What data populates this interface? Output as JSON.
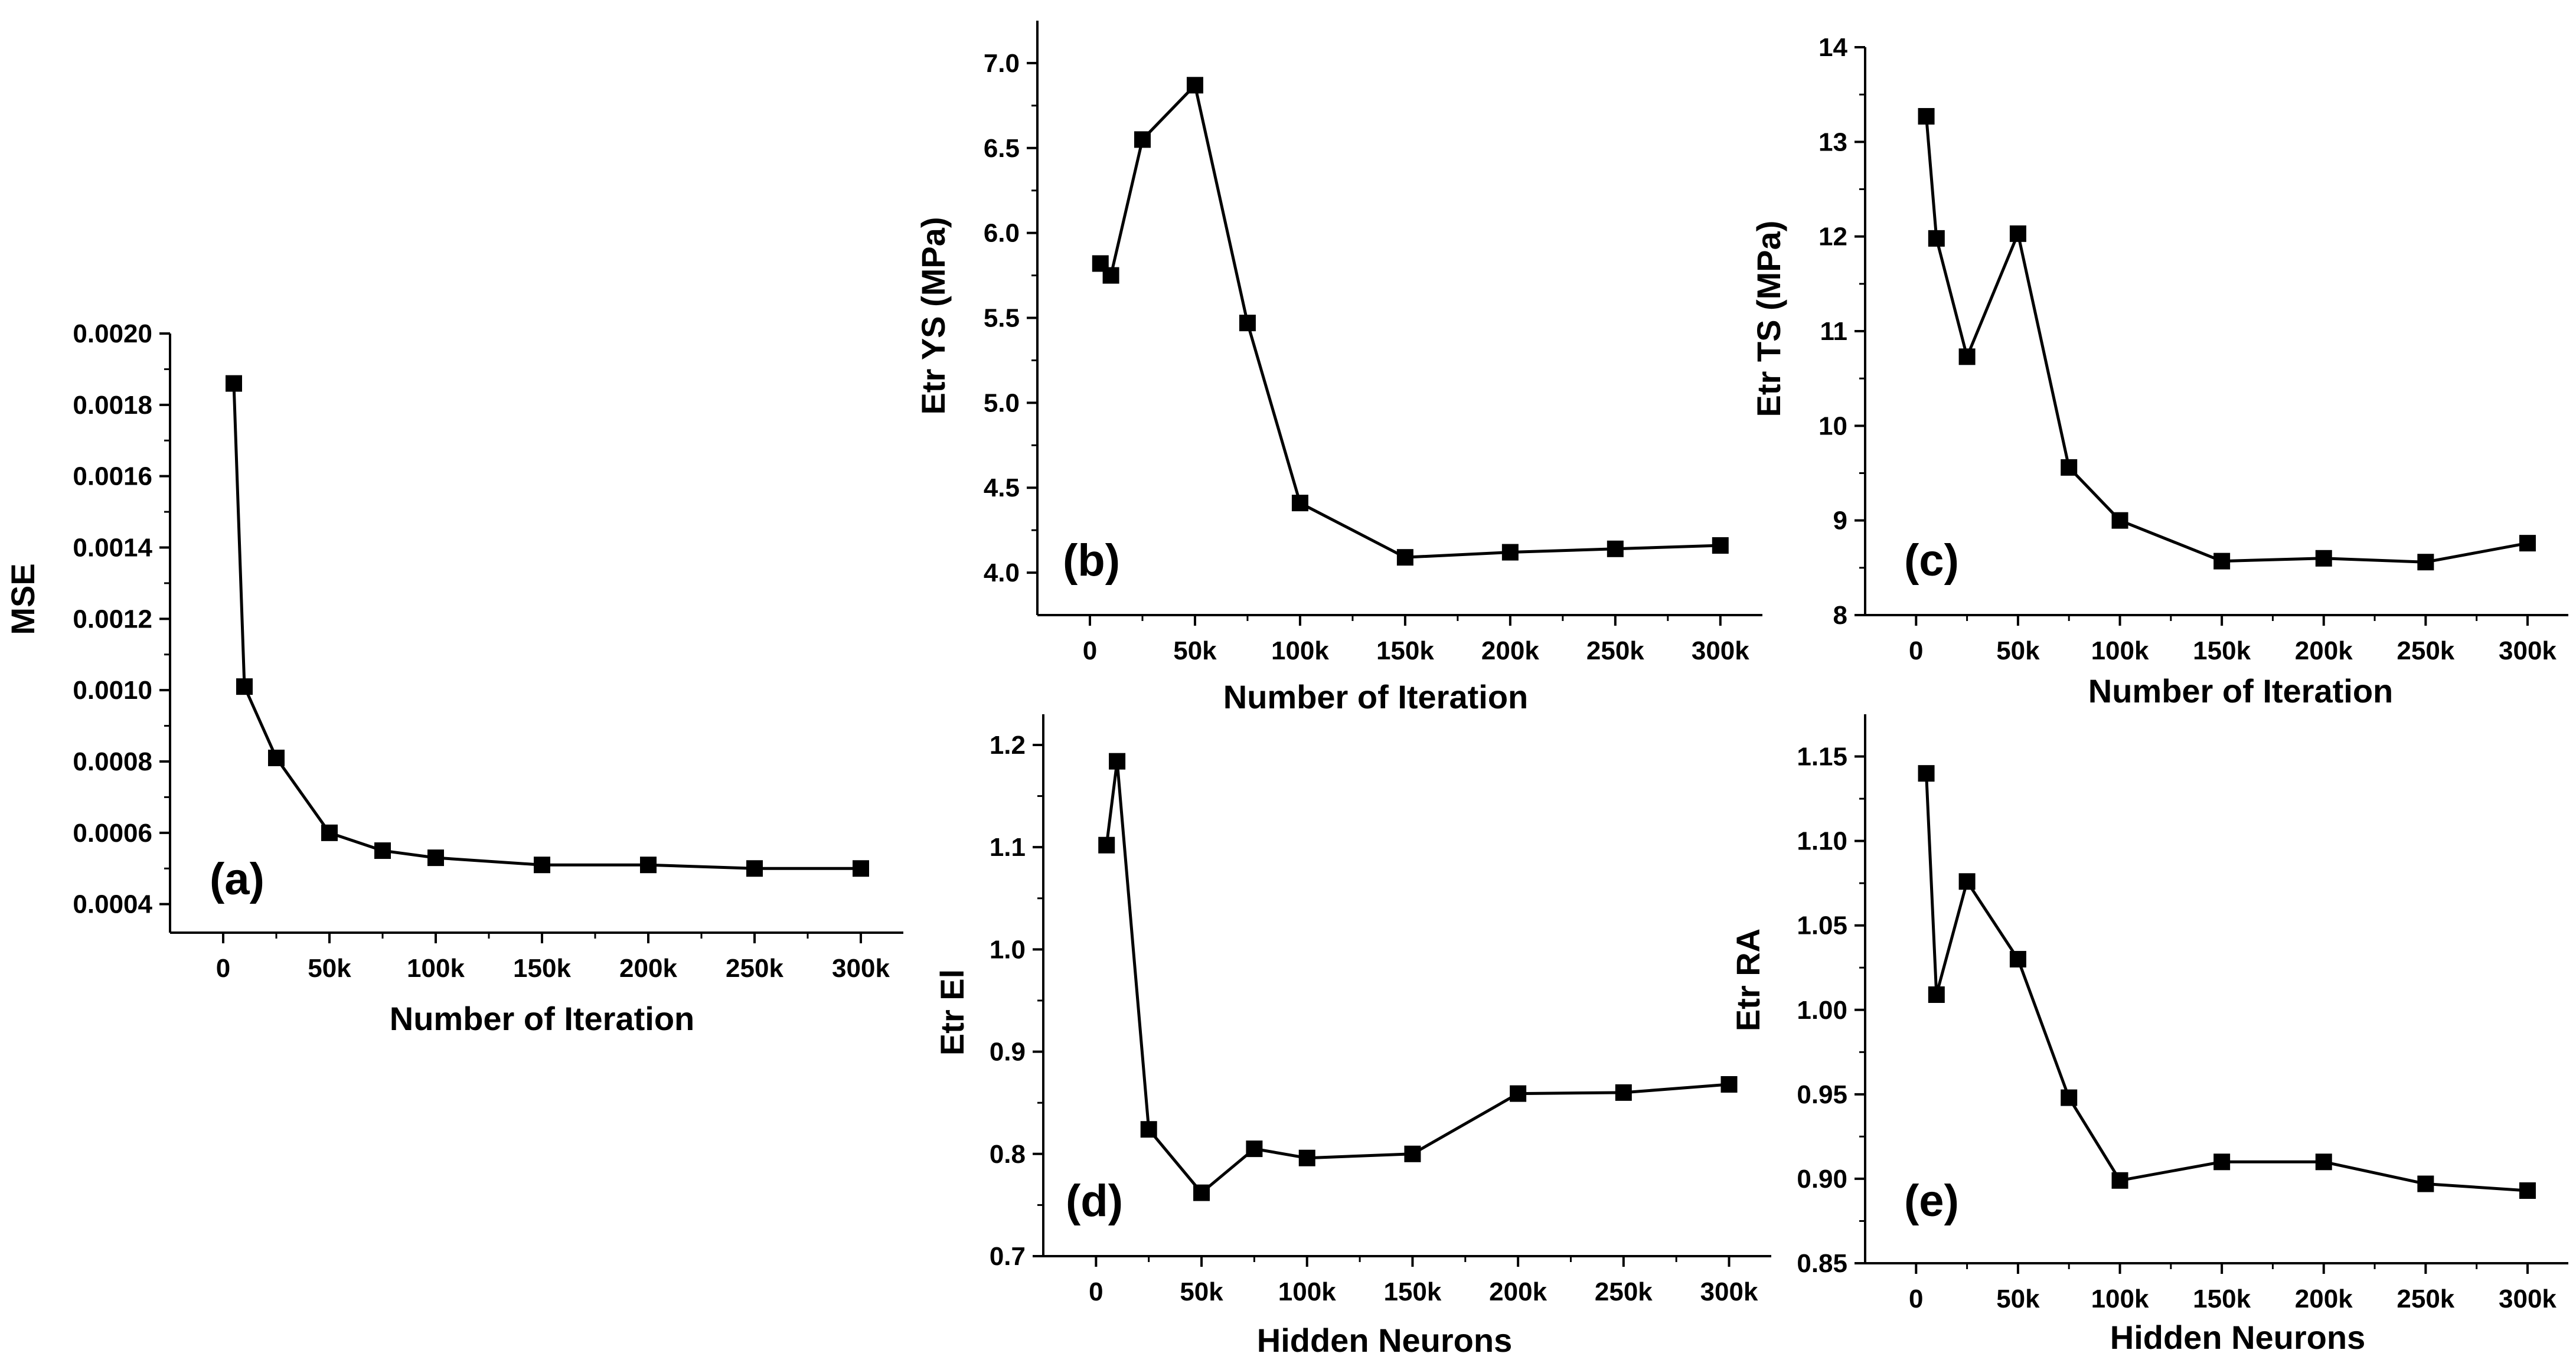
{
  "figure": {
    "background": "#ffffff",
    "line_color": "#000000",
    "marker": "square"
  },
  "chart_data": [
    {
      "id": "a",
      "type": "line",
      "panel_label": "(a)",
      "xlabel": "Number of Iteration",
      "ylabel": "MSE",
      "x": [
        5000,
        10000,
        25000,
        50000,
        75000,
        100000,
        150000,
        200000,
        250000,
        300000
      ],
      "y": [
        0.00186,
        0.00101,
        0.00081,
        0.0006,
        0.00055,
        0.00053,
        0.00051,
        0.00051,
        0.0005,
        0.0005
      ],
      "xlim": [
        -25000,
        320000
      ],
      "ylim": [
        0.00032,
        0.002
      ],
      "xticks": [
        0,
        50000,
        100000,
        150000,
        200000,
        250000,
        300000
      ],
      "xtick_labels": [
        "0",
        "50k",
        "100k",
        "150k",
        "200k",
        "250k",
        "300k"
      ],
      "yticks": [
        0.0004,
        0.0006,
        0.0008,
        0.001,
        0.0012,
        0.0014,
        0.0016,
        0.0018,
        0.002
      ],
      "ytick_labels": [
        "0.0004",
        "0.0006",
        "0.0008",
        "0.0010",
        "0.0012",
        "0.0014",
        "0.0016",
        "0.0018",
        "0.0020"
      ]
    },
    {
      "id": "b",
      "type": "line",
      "panel_label": "(b)",
      "xlabel": "Number of Iteration",
      "ylabel": "Etr YS (MPa)",
      "x": [
        5000,
        10000,
        25000,
        50000,
        75000,
        100000,
        150000,
        200000,
        250000,
        300000
      ],
      "y": [
        5.82,
        5.75,
        6.55,
        6.87,
        5.47,
        4.41,
        4.09,
        4.12,
        4.14,
        4.16
      ],
      "xlim": [
        -25000,
        320000
      ],
      "ylim": [
        3.75,
        7.25
      ],
      "xticks": [
        0,
        50000,
        100000,
        150000,
        200000,
        250000,
        300000
      ],
      "xtick_labels": [
        "0",
        "50k",
        "100k",
        "150k",
        "200k",
        "250k",
        "300k"
      ],
      "yticks": [
        4.0,
        4.5,
        5.0,
        5.5,
        6.0,
        6.5,
        7.0
      ],
      "ytick_labels": [
        "4.0",
        "4.5",
        "5.0",
        "5.5",
        "6.0",
        "6.5",
        "7.0"
      ]
    },
    {
      "id": "c",
      "type": "line",
      "panel_label": "(c)",
      "xlabel": "Number of Iteration",
      "ylabel": "Etr TS (MPa)",
      "x": [
        5000,
        10000,
        25000,
        50000,
        75000,
        100000,
        150000,
        200000,
        250000,
        300000
      ],
      "y": [
        13.27,
        11.98,
        10.73,
        12.03,
        9.56,
        9.0,
        8.57,
        8.6,
        8.56,
        8.76
      ],
      "xlim": [
        -25000,
        320000
      ],
      "ylim": [
        8,
        14
      ],
      "xticks": [
        0,
        50000,
        100000,
        150000,
        200000,
        250000,
        300000
      ],
      "xtick_labels": [
        "0",
        "50k",
        "100k",
        "150k",
        "200k",
        "250k",
        "300k"
      ],
      "yticks": [
        8,
        9,
        10,
        11,
        12,
        13,
        14
      ],
      "ytick_labels": [
        "8",
        "9",
        "10",
        "11",
        "12",
        "13",
        "14"
      ]
    },
    {
      "id": "d",
      "type": "line",
      "panel_label": "(d)",
      "xlabel": "Hidden Neurons",
      "ylabel": "Etr El",
      "x": [
        5000,
        10000,
        25000,
        50000,
        75000,
        100000,
        150000,
        200000,
        250000,
        300000
      ],
      "y": [
        1.102,
        1.184,
        0.824,
        0.762,
        0.805,
        0.796,
        0.8,
        0.859,
        0.86,
        0.868
      ],
      "xlim": [
        -25000,
        320000
      ],
      "ylim": [
        0.7,
        1.23
      ],
      "xticks": [
        0,
        50000,
        100000,
        150000,
        200000,
        250000,
        300000
      ],
      "xtick_labels": [
        "0",
        "50k",
        "100k",
        "150k",
        "200k",
        "250k",
        "300k"
      ],
      "yticks": [
        0.7,
        0.8,
        0.9,
        1.0,
        1.1,
        1.2
      ],
      "ytick_labels": [
        "0.7",
        "0.8",
        "0.9",
        "1.0",
        "1.1",
        "1.2"
      ]
    },
    {
      "id": "e",
      "type": "line",
      "panel_label": "(e)",
      "xlabel": "Hidden Neurons",
      "ylabel": "Etr RA",
      "x": [
        5000,
        10000,
        25000,
        50000,
        75000,
        100000,
        150000,
        200000,
        250000,
        300000
      ],
      "y": [
        1.14,
        1.009,
        1.076,
        1.03,
        0.948,
        0.899,
        0.91,
        0.91,
        0.897,
        0.893
      ],
      "xlim": [
        -25000,
        320000
      ],
      "ylim": [
        0.85,
        1.175
      ],
      "xticks": [
        0,
        50000,
        100000,
        150000,
        200000,
        250000,
        300000
      ],
      "xtick_labels": [
        "0",
        "50k",
        "100k",
        "150k",
        "200k",
        "250k",
        "300k"
      ],
      "yticks": [
        0.85,
        0.9,
        0.95,
        1.0,
        1.05,
        1.1,
        1.15
      ],
      "ytick_labels": [
        "0.85",
        "0.90",
        "0.95",
        "1.00",
        "1.05",
        "1.10",
        "1.15"
      ]
    }
  ]
}
